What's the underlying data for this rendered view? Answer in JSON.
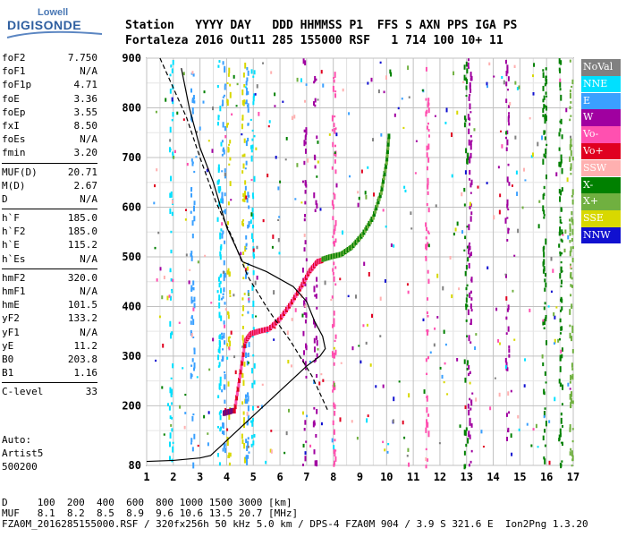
{
  "logo": {
    "line1": "Lowell",
    "line2": "DIGISONDE"
  },
  "header": {
    "row1": "Station   YYYY DAY   DDD HHMMSS P1  FFS S AXN PPS IGA PS",
    "row2": "Fortaleza 2016 Out11 285 155000 RSF   1 714 100 10+ 11"
  },
  "params": [
    {
      "group": [
        {
          "k": "foF2",
          "v": "7.750"
        },
        {
          "k": "foF1",
          "v": "N/A"
        },
        {
          "k": "foF1p",
          "v": "4.71"
        },
        {
          "k": "foE",
          "v": "3.36"
        },
        {
          "k": "foEp",
          "v": "3.55"
        },
        {
          "k": "fxI",
          "v": "8.50"
        },
        {
          "k": "foEs",
          "v": "N/A"
        },
        {
          "k": "fmin",
          "v": "3.20"
        }
      ]
    },
    {
      "group": [
        {
          "k": "MUF(D)",
          "v": "20.71"
        },
        {
          "k": "M(D)",
          "v": "2.67"
        },
        {
          "k": "D",
          "v": "N/A"
        }
      ]
    },
    {
      "group": [
        {
          "k": "h`F",
          "v": "185.0"
        },
        {
          "k": "h`F2",
          "v": "185.0"
        },
        {
          "k": "h`E",
          "v": "115.2"
        },
        {
          "k": "h`Es",
          "v": "N/A"
        }
      ]
    },
    {
      "group": [
        {
          "k": "hmF2",
          "v": "320.0"
        },
        {
          "k": "hmF1",
          "v": "N/A"
        },
        {
          "k": "hmE",
          "v": "101.5"
        },
        {
          "k": "yF2",
          "v": "133.2"
        },
        {
          "k": "yF1",
          "v": "N/A"
        },
        {
          "k": "yE",
          "v": "11.2"
        },
        {
          "k": "B0",
          "v": "203.8"
        },
        {
          "k": "B1",
          "v": "1.16"
        }
      ]
    },
    {
      "group": [
        {
          "k": "C-level",
          "v": "33"
        }
      ]
    }
  ],
  "auto": {
    "line1": "Auto:",
    "line2": "Artist5",
    "line3": "500200"
  },
  "legend": [
    {
      "label": "NoVal",
      "color": "#808080"
    },
    {
      "label": "NNE",
      "color": "#00e0ff"
    },
    {
      "label": "E",
      "color": "#3aa0ff"
    },
    {
      "label": "W",
      "color": "#a000a0"
    },
    {
      "label": "Vo-",
      "color": "#ff50b0"
    },
    {
      "label": "Vo+",
      "color": "#e00020"
    },
    {
      "label": "SSW",
      "color": "#ffb0b0"
    },
    {
      "label": "X-",
      "color": "#008000"
    },
    {
      "label": "X+",
      "color": "#70b040"
    },
    {
      "label": "SSE",
      "color": "#d8d800"
    },
    {
      "label": "NNW",
      "color": "#1010d0"
    }
  ],
  "footer": {
    "line1": "D     100  200  400  600  800 1000 1500 3000 [km]",
    "line2": "MUF   8.1  8.2  8.5  8.9  9.6 10.6 13.5 20.7 [MHz]",
    "line3": "FZA0M_2016285155000.RSF / 320fx256h 50 kHz 5.0 km / DPS-4 FZA0M 904 / 3.9 S 321.6 E  Ion2Png 1.3.20"
  },
  "chart_data": {
    "type": "scatter",
    "x_ticks": [
      "1",
      "2",
      "3",
      "4",
      "5",
      "6",
      "7",
      "8",
      "9",
      "10",
      "11",
      "12",
      "13",
      "14",
      "15",
      "16",
      "17"
    ],
    "y_ticks": [
      "80",
      "200",
      "300",
      "400",
      "500",
      "600",
      "700",
      "800",
      "900"
    ],
    "xlim": [
      1,
      17
    ],
    "ylim": [
      80,
      900
    ],
    "grid": true,
    "traces": {
      "o_trace_F": {
        "x": [
          4.3,
          4.5,
          4.7,
          4.9,
          5.2,
          5.6,
          6.0,
          6.4,
          6.8,
          7.1,
          7.4,
          7.6
        ],
        "y": [
          190,
          260,
          330,
          345,
          350,
          355,
          375,
          405,
          440,
          470,
          490,
          493
        ]
      },
      "x_trace_F": {
        "x": [
          7.6,
          7.9,
          8.3,
          8.7,
          9.1,
          9.5,
          9.8,
          10.0,
          10.1
        ],
        "y": [
          495,
          500,
          505,
          520,
          545,
          580,
          630,
          690,
          750
        ]
      },
      "e_trace": {
        "x": [
          3.9,
          4.0,
          4.1,
          4.2,
          4.3
        ],
        "y": [
          185,
          187,
          188,
          190,
          190
        ]
      }
    },
    "profile_solid": {
      "x": [
        1.0,
        2.0,
        3.0,
        3.4,
        4.0,
        4.6,
        5.2,
        5.8,
        6.4,
        7.0,
        7.5,
        7.7,
        7.6,
        7.3,
        7.0,
        6.5,
        5.5,
        4.6,
        4.0,
        3.5,
        3.0,
        2.6,
        2.3
      ],
      "y": [
        88,
        90,
        95,
        100,
        130,
        160,
        190,
        220,
        250,
        280,
        300,
        315,
        340,
        370,
        410,
        440,
        470,
        490,
        560,
        650,
        720,
        800,
        880
      ]
    },
    "profile_dashed": {
      "x": [
        1.5,
        2.0,
        2.5,
        3.0,
        3.6,
        4.2,
        4.8,
        5.6,
        6.4,
        7.2,
        7.8
      ],
      "y": [
        900,
        840,
        780,
        700,
        610,
        540,
        460,
        390,
        330,
        260,
        190
      ]
    }
  }
}
